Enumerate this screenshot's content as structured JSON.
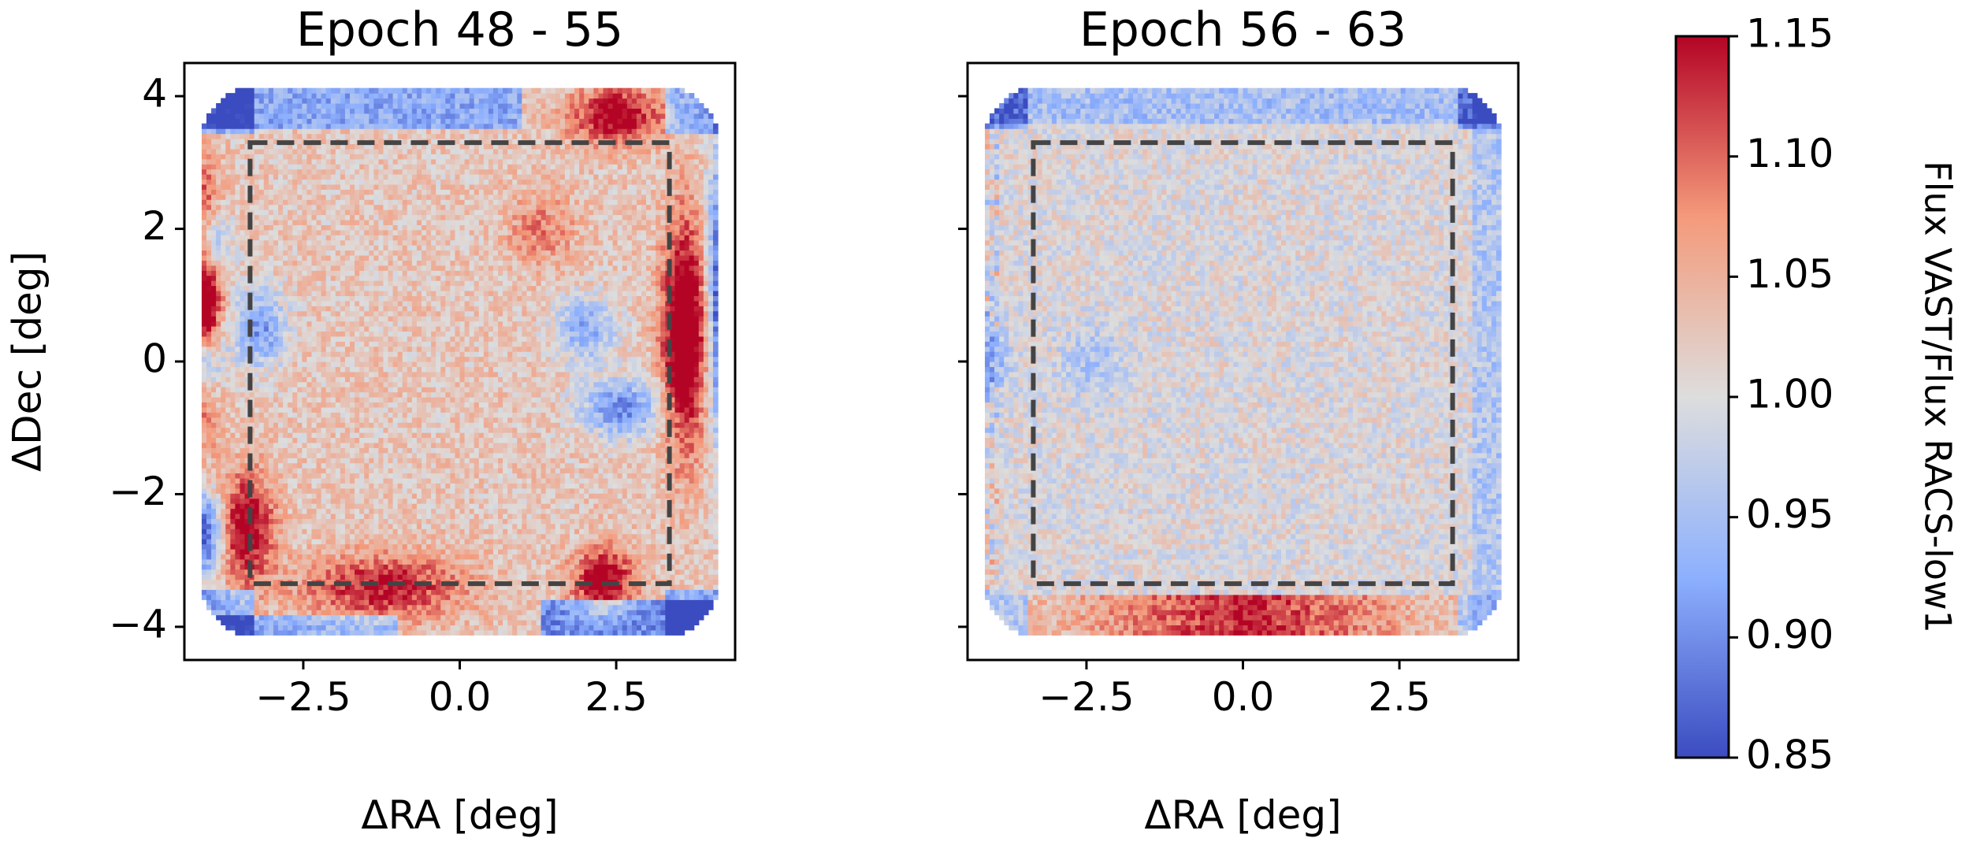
{
  "chart_data": [
    {
      "type": "heatmap",
      "title": "Epoch 48 - 55",
      "xlabel": "ΔRA [deg]",
      "ylabel": "ΔDec [deg]",
      "xlim": [
        -4.4,
        4.4
      ],
      "ylim": [
        -4.5,
        4.5
      ],
      "xticks": [
        -2.5,
        0.0,
        2.5
      ],
      "xtick_labels": [
        "−2.5",
        "0.0",
        "2.5"
      ],
      "yticks": [
        -4,
        -2,
        0,
        2,
        4
      ],
      "ytick_labels": [
        "−4",
        "−2",
        "0",
        "2",
        "4"
      ],
      "dashed_box": {
        "x": [
          -3.35,
          3.35
        ],
        "y": [
          -3.35,
          3.3
        ]
      },
      "grid": false,
      "variant": "first"
    },
    {
      "type": "heatmap",
      "title": "Epoch 56 - 63",
      "xlabel": "ΔRA [deg]",
      "ylabel": "",
      "xlim": [
        -4.4,
        4.4
      ],
      "ylim": [
        -4.5,
        4.5
      ],
      "xticks": [
        -2.5,
        0.0,
        2.5
      ],
      "xtick_labels": [
        "−2.5",
        "0.0",
        "2.5"
      ],
      "yticks": [
        -4,
        -2,
        0,
        2,
        4
      ],
      "ytick_labels": [],
      "dashed_box": {
        "x": [
          -3.35,
          3.35
        ],
        "y": [
          -3.35,
          3.3
        ]
      },
      "grid": false,
      "variant": "second"
    }
  ],
  "colorbar": {
    "label": "Flux VAST/Flux RACS-low1",
    "min": 0.85,
    "max": 1.15,
    "ticks": [
      0.85,
      0.9,
      0.95,
      1.0,
      1.05,
      1.1,
      1.15
    ],
    "tick_labels": [
      "0.85",
      "0.90",
      "0.95",
      "1.00",
      "1.05",
      "1.10",
      "1.15"
    ],
    "colormap": "coolwarm",
    "colors": {
      "low": "#3b4cc0",
      "mid": "#dddddd",
      "high": "#b40426"
    }
  }
}
